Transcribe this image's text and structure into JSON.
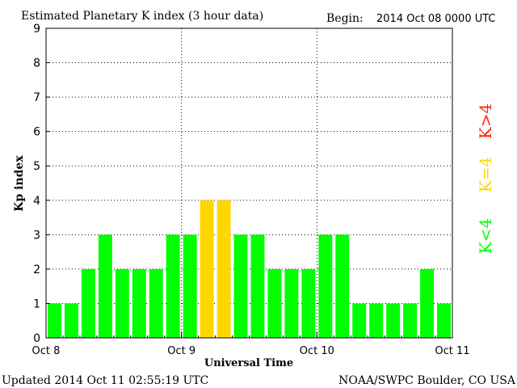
{
  "chart_data": {
    "type": "bar",
    "title": "Estimated Planetary K index (3 hour data)",
    "begin_label": "Begin:",
    "begin_value": "2014 Oct 08 0000 UTC",
    "xlabel": "Universal Time",
    "ylabel": "Kp index",
    "ylim": [
      0,
      9
    ],
    "yticks": [
      "0",
      "1",
      "2",
      "3",
      "4",
      "5",
      "6",
      "7",
      "8",
      "9"
    ],
    "xticks": [
      "Oct 8",
      "Oct 9",
      "Oct 10",
      "Oct 11"
    ],
    "values": [
      1,
      1,
      2,
      3,
      2,
      2,
      2,
      3,
      3,
      4,
      4,
      3,
      3,
      2,
      2,
      2,
      3,
      3,
      1,
      1,
      1,
      1,
      2,
      1
    ],
    "grid": true,
    "colors": {
      "low": "#00ff00",
      "equal": "#ffd700",
      "high": "#ff2200"
    },
    "legend": {
      "low": "K<4",
      "equal": "K=4",
      "high": "K>4",
      "placement": "right"
    }
  },
  "footer": {
    "updated": "Updated 2014 Oct 11 02:55:19 UTC",
    "credit": "NOAA/SWPC Boulder, CO USA"
  }
}
